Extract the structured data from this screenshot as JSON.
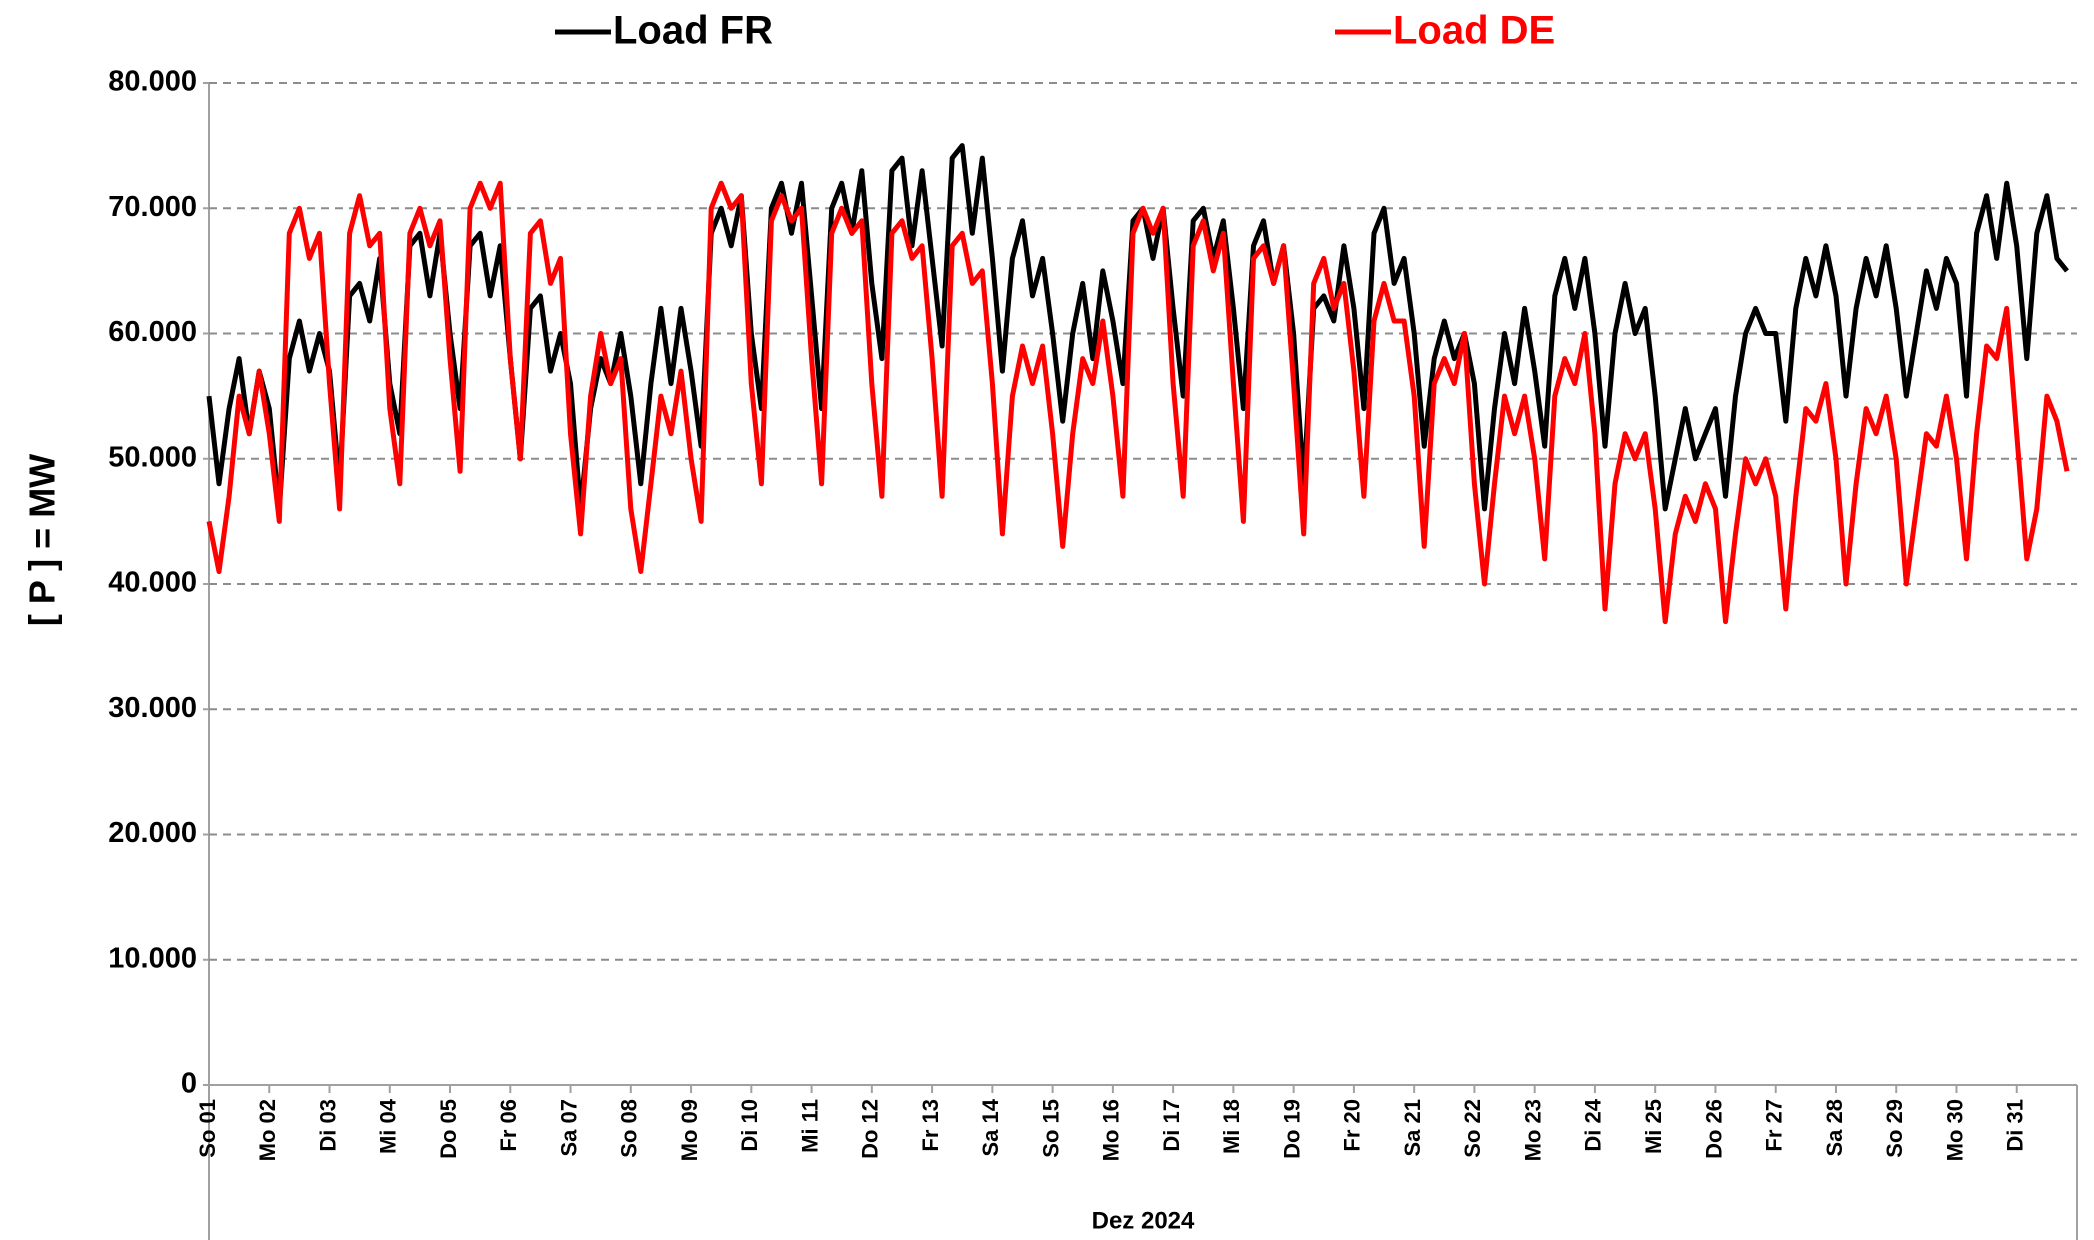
{
  "chart_data": {
    "type": "line",
    "legend": "top",
    "grid": true,
    "ylabel": "[ P ]  =  MW",
    "xlabel": "Dez 2024",
    "ylim": [
      0,
      80000
    ],
    "yticks": [
      0,
      {
        "value": 10000,
        "label": "10.000"
      },
      {
        "value": 20000,
        "label": "20.000"
      },
      {
        "value": 30000,
        "label": "30.000"
      },
      {
        "value": 40000,
        "label": "40.000"
      },
      {
        "value": 50000,
        "label": "50.000"
      },
      {
        "value": 60000,
        "label": "60.000"
      },
      {
        "value": 70000,
        "label": "70.000"
      },
      {
        "value": 80000,
        "label": "80.000"
      }
    ],
    "categories": [
      "So 01",
      null,
      null,
      null,
      null,
      null,
      "Mo 02",
      null,
      null,
      null,
      null,
      null,
      "Di 03",
      null,
      null,
      null,
      null,
      null,
      "Mi 04",
      null,
      null,
      null,
      null,
      null,
      "Do 05",
      null,
      null,
      null,
      null,
      null,
      "Fr 06",
      null,
      null,
      null,
      null,
      null,
      "Sa 07",
      null,
      null,
      null,
      null,
      null,
      "So 08",
      null,
      null,
      null,
      null,
      null,
      "Mo 09",
      null,
      null,
      null,
      null,
      null,
      "Di 10",
      null,
      null,
      null,
      null,
      null,
      "Mi 11",
      null,
      null,
      null,
      null,
      null,
      "Do 12",
      null,
      null,
      null,
      null,
      null,
      "Fr 13",
      null,
      null,
      null,
      null,
      null,
      "Sa 14",
      null,
      null,
      null,
      null,
      null,
      "So 15",
      null,
      null,
      null,
      null,
      null,
      "Mo 16",
      null,
      null,
      null,
      null,
      null,
      "Di 17",
      null,
      null,
      null,
      null,
      null,
      "Mi 18",
      null,
      null,
      null,
      null,
      null,
      "Do 19",
      null,
      null,
      null,
      null,
      null,
      "Fr 20",
      null,
      null,
      null,
      null,
      null,
      "Sa 21",
      null,
      null,
      null,
      null,
      null,
      "So 22",
      null,
      null,
      null,
      null,
      null,
      "Mo 23",
      null,
      null,
      null,
      null,
      null,
      "Di 24",
      null,
      null,
      null,
      null,
      null,
      "Mi 25",
      null,
      null,
      null,
      null,
      null,
      "Do 26",
      null,
      null,
      null,
      null,
      null,
      "Fr 27",
      null,
      null,
      null,
      null,
      null,
      "Sa 28",
      null,
      null,
      null,
      null,
      null,
      "So 29",
      null,
      null,
      null,
      null,
      null,
      "Mo 30",
      null,
      null,
      null,
      null,
      null,
      "Di 31",
      null,
      null,
      null,
      null,
      null
    ],
    "series": [
      {
        "name": "Load FR",
        "color": "#000000",
        "values": [
          55000,
          48000,
          54000,
          58000,
          52000,
          57000,
          54000,
          46000,
          58000,
          61000,
          57000,
          60000,
          57000,
          48000,
          63000,
          64000,
          61000,
          66000,
          56000,
          52000,
          67000,
          68000,
          63000,
          68000,
          60000,
          54000,
          67000,
          68000,
          63000,
          67000,
          58000,
          50000,
          62000,
          63000,
          57000,
          60000,
          56000,
          46000,
          54000,
          58000,
          56000,
          60000,
          55000,
          48000,
          56000,
          62000,
          56000,
          62000,
          57000,
          51000,
          68000,
          70000,
          67000,
          71000,
          60000,
          54000,
          70000,
          72000,
          68000,
          72000,
          63000,
          54000,
          70000,
          72000,
          68000,
          73000,
          64000,
          58000,
          73000,
          74000,
          67000,
          73000,
          66000,
          59000,
          74000,
          75000,
          68000,
          74000,
          66000,
          57000,
          66000,
          69000,
          63000,
          66000,
          60000,
          53000,
          60000,
          64000,
          58000,
          65000,
          61000,
          56000,
          69000,
          70000,
          66000,
          70000,
          62000,
          55000,
          69000,
          70000,
          66000,
          69000,
          62000,
          54000,
          67000,
          69000,
          64000,
          67000,
          60000,
          48000,
          62000,
          63000,
          61000,
          67000,
          62000,
          54000,
          68000,
          70000,
          64000,
          66000,
          60000,
          51000,
          58000,
          61000,
          58000,
          60000,
          56000,
          46000,
          54000,
          60000,
          56000,
          62000,
          57000,
          51000,
          63000,
          66000,
          62000,
          66000,
          60000,
          51000,
          60000,
          64000,
          60000,
          62000,
          55000,
          46000,
          50000,
          54000,
          50000,
          52000,
          54000,
          47000,
          55000,
          60000,
          62000,
          60000,
          60000,
          53000,
          62000,
          66000,
          63000,
          67000,
          63000,
          55000,
          62000,
          66000,
          63000,
          67000,
          62000,
          55000,
          60000,
          65000,
          62000,
          66000,
          64000,
          55000,
          68000,
          71000,
          66000,
          72000,
          67000,
          58000,
          68000,
          71000,
          66000,
          65000
        ]
      },
      {
        "name": "Load DE",
        "color": "#ff0000",
        "values": [
          45000,
          41000,
          47000,
          55000,
          52000,
          57000,
          52000,
          45000,
          68000,
          70000,
          66000,
          68000,
          56000,
          46000,
          68000,
          71000,
          67000,
          68000,
          54000,
          48000,
          68000,
          70000,
          67000,
          69000,
          58000,
          49000,
          70000,
          72000,
          70000,
          72000,
          58000,
          50000,
          68000,
          69000,
          64000,
          66000,
          52000,
          44000,
          55000,
          60000,
          56000,
          58000,
          46000,
          41000,
          48000,
          55000,
          52000,
          57000,
          50000,
          45000,
          70000,
          72000,
          70000,
          71000,
          56000,
          48000,
          69000,
          71000,
          69000,
          70000,
          58000,
          48000,
          68000,
          70000,
          68000,
          69000,
          56000,
          47000,
          68000,
          69000,
          66000,
          67000,
          58000,
          47000,
          67000,
          68000,
          64000,
          65000,
          56000,
          44000,
          55000,
          59000,
          56000,
          59000,
          52000,
          43000,
          52000,
          58000,
          56000,
          61000,
          55000,
          47000,
          68000,
          70000,
          68000,
          70000,
          56000,
          47000,
          67000,
          69000,
          65000,
          68000,
          56000,
          45000,
          66000,
          67000,
          64000,
          67000,
          56000,
          44000,
          64000,
          66000,
          62000,
          64000,
          57000,
          47000,
          61000,
          64000,
          61000,
          61000,
          55000,
          43000,
          56000,
          58000,
          56000,
          60000,
          48000,
          40000,
          48000,
          55000,
          52000,
          55000,
          50000,
          42000,
          55000,
          58000,
          56000,
          60000,
          52000,
          38000,
          48000,
          52000,
          50000,
          52000,
          46000,
          37000,
          44000,
          47000,
          45000,
          48000,
          46000,
          37000,
          44000,
          50000,
          48000,
          50000,
          47000,
          38000,
          47000,
          54000,
          53000,
          56000,
          50000,
          40000,
          48000,
          54000,
          52000,
          55000,
          50000,
          40000,
          46000,
          52000,
          51000,
          55000,
          50000,
          42000,
          52000,
          59000,
          58000,
          62000,
          52000,
          42000,
          46000,
          55000,
          53000,
          49000
        ]
      }
    ]
  }
}
